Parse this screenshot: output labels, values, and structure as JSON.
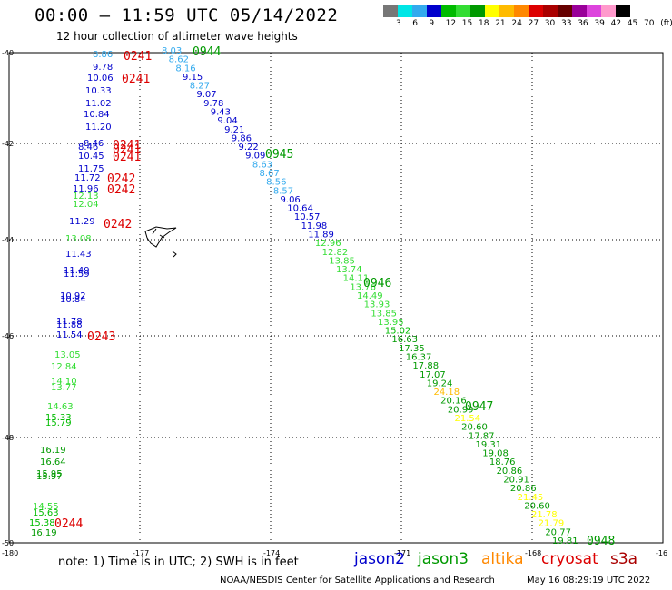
{
  "header": {
    "title": "00:00 – 11:59 UTC 05/14/2022",
    "subtitle": "12 hour collection of altimeter wave heights"
  },
  "color_scale": {
    "colors": [
      "#777777",
      "#00e6e6",
      "#33aaee",
      "#0000cc",
      "#00bb00",
      "#33dd33",
      "#009900",
      "#ffff00",
      "#ffbb00",
      "#ff8800",
      "#dd0000",
      "#aa0000",
      "#660000",
      "#990099",
      "#dd44dd",
      "#ff99cc",
      "#000000"
    ],
    "labels": [
      "3",
      "6",
      "9",
      "12",
      "15",
      "18",
      "21",
      "24",
      "27",
      "30",
      "33",
      "36",
      "39",
      "42",
      "45",
      "70",
      "(ft)"
    ]
  },
  "map": {
    "lat_labels": [
      "-40",
      "-42",
      "-44",
      "-46",
      "-48",
      "-50"
    ],
    "lon_labels": [
      "-180",
      "-177",
      "-174",
      "-171",
      "-168",
      "-16"
    ],
    "track1": [
      {
        "t": "8.86",
        "c": "#33aaee"
      },
      {
        "t": "9.78",
        "c": "#0000cc"
      },
      {
        "t": "10.06",
        "c": "#0000cc"
      },
      {
        "t": "10.33",
        "c": "#0000cc"
      },
      {
        "t": "11.02",
        "c": "#0000cc"
      },
      {
        "t": "10.84",
        "c": "#0000cc"
      },
      {
        "t": "11.20",
        "c": "#0000cc"
      },
      {
        "t": "8.46",
        "c": "#0000cc"
      },
      {
        "t": "8.46",
        "c": "#0000cc"
      },
      {
        "t": "10.45",
        "c": "#0000cc"
      },
      {
        "t": "11.75",
        "c": "#0000cc"
      },
      {
        "t": "11.72",
        "c": "#0000cc"
      },
      {
        "t": "11.96",
        "c": "#0000cc"
      },
      {
        "t": "12.13",
        "c": "#33dd33"
      },
      {
        "t": "12.04",
        "c": "#33dd33"
      },
      {
        "t": "11.29",
        "c": "#0000cc"
      },
      {
        "t": "13.08",
        "c": "#33dd33"
      },
      {
        "t": "11.43",
        "c": "#0000cc"
      },
      {
        "t": "11.49",
        "c": "#0000cc"
      },
      {
        "t": "11.59",
        "c": "#0000cc"
      },
      {
        "t": "10.92",
        "c": "#0000cc"
      },
      {
        "t": "10.84",
        "c": "#0000cc"
      },
      {
        "t": "11.78",
        "c": "#0000cc"
      },
      {
        "t": "11.88",
        "c": "#0000cc"
      },
      {
        "t": "11.54",
        "c": "#0000cc"
      },
      {
        "t": "13.05",
        "c": "#33dd33"
      },
      {
        "t": "12.84",
        "c": "#33dd33"
      },
      {
        "t": "14.10",
        "c": "#33dd33"
      },
      {
        "t": "13.77",
        "c": "#33dd33"
      },
      {
        "t": "14.63",
        "c": "#33dd33"
      },
      {
        "t": "15.33",
        "c": "#00bb00"
      },
      {
        "t": "15.79",
        "c": "#00bb00"
      },
      {
        "t": "16.19",
        "c": "#009900"
      },
      {
        "t": "16.64",
        "c": "#009900"
      },
      {
        "t": "15.95",
        "c": "#009900"
      },
      {
        "t": "15.97",
        "c": "#009900"
      },
      {
        "t": "14.55",
        "c": "#33dd33"
      },
      {
        "t": "15.63",
        "c": "#00bb00"
      },
      {
        "t": "15.38",
        "c": "#00bb00"
      },
      {
        "t": "16.19",
        "c": "#009900"
      }
    ],
    "track1_times": [
      "0241",
      "0241",
      "0241",
      "0241",
      "0241",
      "0242",
      "0242",
      "0242",
      "0243",
      "0244"
    ],
    "track2": [
      {
        "t": "8.03",
        "c": "#33aaee"
      },
      {
        "t": "8.62",
        "c": "#33aaee"
      },
      {
        "t": "8.16",
        "c": "#33aaee"
      },
      {
        "t": "9.15",
        "c": "#0000cc"
      },
      {
        "t": "8.27",
        "c": "#33aaee"
      },
      {
        "t": "9.07",
        "c": "#0000cc"
      },
      {
        "t": "9.78",
        "c": "#0000cc"
      },
      {
        "t": "9.43",
        "c": "#0000cc"
      },
      {
        "t": "9.04",
        "c": "#0000cc"
      },
      {
        "t": "9.21",
        "c": "#0000cc"
      },
      {
        "t": "9.86",
        "c": "#0000cc"
      },
      {
        "t": "9.22",
        "c": "#0000cc"
      },
      {
        "t": "9.09",
        "c": "#0000cc"
      },
      {
        "t": "8.63",
        "c": "#33aaee"
      },
      {
        "t": "8.67",
        "c": "#33aaee"
      },
      {
        "t": "8.56",
        "c": "#33aaee"
      },
      {
        "t": "8.57",
        "c": "#33aaee"
      },
      {
        "t": "9.06",
        "c": "#0000cc"
      },
      {
        "t": "10.64",
        "c": "#0000cc"
      },
      {
        "t": "10.57",
        "c": "#0000cc"
      },
      {
        "t": "11.98",
        "c": "#0000cc"
      },
      {
        "t": "11.89",
        "c": "#0000cc"
      },
      {
        "t": "12.96",
        "c": "#33dd33"
      },
      {
        "t": "12.82",
        "c": "#33dd33"
      },
      {
        "t": "13.85",
        "c": "#33dd33"
      },
      {
        "t": "13.74",
        "c": "#33dd33"
      },
      {
        "t": "14.11",
        "c": "#33dd33"
      },
      {
        "t": "13.76",
        "c": "#33dd33"
      },
      {
        "t": "14.49",
        "c": "#33dd33"
      },
      {
        "t": "13.93",
        "c": "#33dd33"
      },
      {
        "t": "13.85",
        "c": "#33dd33"
      },
      {
        "t": "13.95",
        "c": "#33dd33"
      },
      {
        "t": "15.02",
        "c": "#00bb00"
      },
      {
        "t": "16.63",
        "c": "#009900"
      },
      {
        "t": "17.35",
        "c": "#009900"
      },
      {
        "t": "16.37",
        "c": "#009900"
      },
      {
        "t": "17.88",
        "c": "#009900"
      },
      {
        "t": "17.07",
        "c": "#009900"
      },
      {
        "t": "19.24",
        "c": "#009900"
      },
      {
        "t": "24.18",
        "c": "#ffbb00"
      },
      {
        "t": "20.16",
        "c": "#009900"
      },
      {
        "t": "20.99",
        "c": "#009900"
      },
      {
        "t": "21.54",
        "c": "#ffff00"
      },
      {
        "t": "20.60",
        "c": "#009900"
      },
      {
        "t": "17.87",
        "c": "#009900"
      },
      {
        "t": "19.31",
        "c": "#009900"
      },
      {
        "t": "19.08",
        "c": "#009900"
      },
      {
        "t": "18.76",
        "c": "#009900"
      },
      {
        "t": "20.86",
        "c": "#009900"
      },
      {
        "t": "20.91",
        "c": "#009900"
      },
      {
        "t": "20.86",
        "c": "#009900"
      },
      {
        "t": "21.45",
        "c": "#ffff00"
      },
      {
        "t": "20.60",
        "c": "#009900"
      },
      {
        "t": "21.78",
        "c": "#ffff00"
      },
      {
        "t": "21.79",
        "c": "#ffff00"
      },
      {
        "t": "20.77",
        "c": "#009900"
      },
      {
        "t": "19.81",
        "c": "#009900"
      }
    ],
    "track2_times": [
      "0944",
      "0945",
      "0946",
      "0947",
      "0948"
    ]
  },
  "footer": {
    "note": "note: 1) Time is in UTC; 2) SWH is in feet",
    "satellites": [
      {
        "name": "jason2",
        "color": "#0000cc"
      },
      {
        "name": "jason3",
        "color": "#009900"
      },
      {
        "name": "altika",
        "color": "#ff8800"
      },
      {
        "name": "cryosat",
        "color": "#dd0000"
      },
      {
        "name": "s3a",
        "color": "#aa0000"
      }
    ],
    "credit": "NOAA/NESDIS Center for Satellite Applications and Research",
    "timestamp": "May 16 08:29:19 UTC 2022"
  }
}
